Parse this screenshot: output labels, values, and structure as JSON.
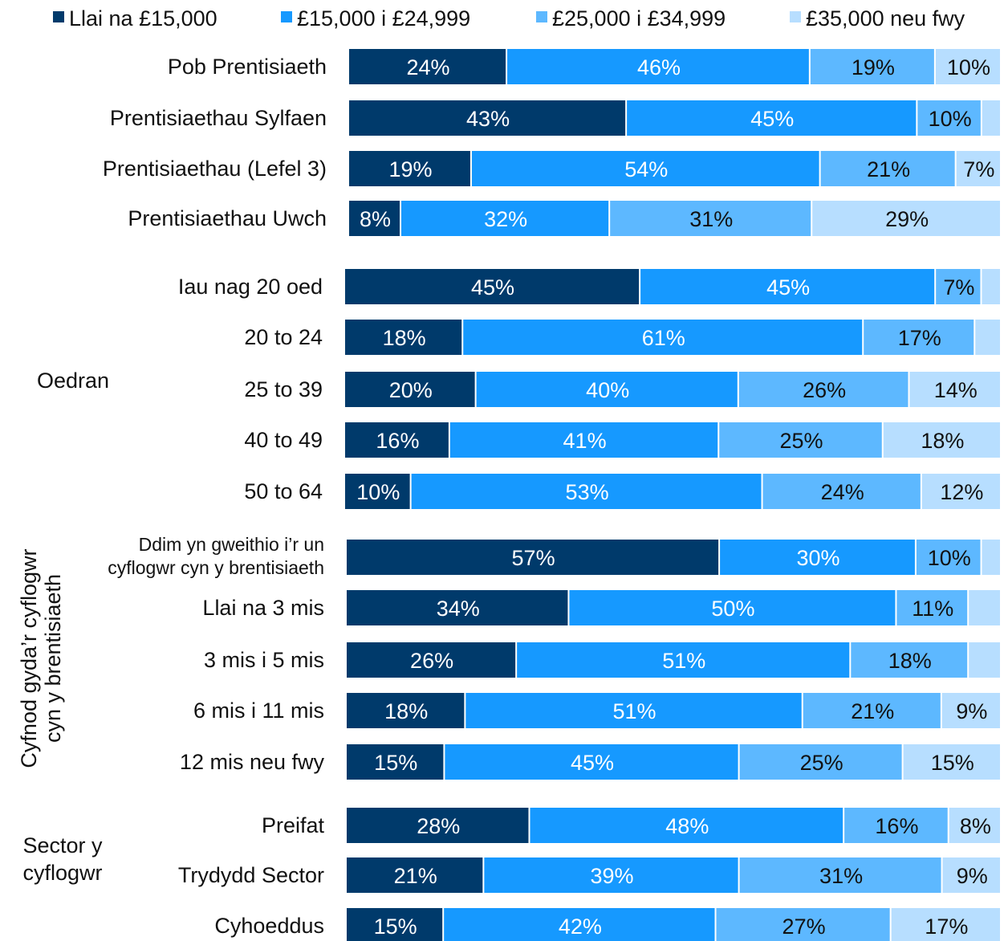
{
  "chart_data": {
    "type": "bar",
    "orientation": "horizontal",
    "stacked": true,
    "series": [
      {
        "name": "Llai na £15,000",
        "color": "#003A6B"
      },
      {
        "name": "£15,000 i £24,999",
        "color": "#1699FF"
      },
      {
        "name": "£25,000 i £34,999",
        "color": "#5DB8FF"
      },
      {
        "name": "£35,000 neu fwy",
        "color": "#B7DEFF"
      }
    ],
    "legend_position": "top",
    "groups": [
      {
        "label": "",
        "rows": [
          {
            "category": "Pob Prentisiaeth",
            "values": [
              24,
              46,
              19,
              10
            ],
            "labels": [
              "24%",
              "46%",
              "19%",
              "10%"
            ]
          },
          {
            "category": "Prentisiaethau Sylfaen",
            "values": [
              43,
              45,
              10,
              3
            ],
            "labels": [
              "43%",
              "45%",
              "10%",
              ""
            ]
          },
          {
            "category": "Prentisiaethau (Lefel 3)",
            "values": [
              19,
              54,
              21,
              7
            ],
            "labels": [
              "19%",
              "54%",
              "21%",
              "7%"
            ]
          },
          {
            "category": "Prentisiaethau Uwch",
            "values": [
              8,
              32,
              31,
              29
            ],
            "labels": [
              "8%",
              "32%",
              "31%",
              "29%"
            ]
          }
        ]
      },
      {
        "label": "Oedran",
        "rows": [
          {
            "category": "Iau nag 20 oed",
            "values": [
              45,
              45,
              7,
              3
            ],
            "labels": [
              "45%",
              "45%",
              "7%",
              ""
            ]
          },
          {
            "category": "20 to 24",
            "values": [
              18,
              61,
              17,
              4
            ],
            "labels": [
              "18%",
              "61%",
              "17%",
              ""
            ]
          },
          {
            "category": "25 to 39",
            "values": [
              20,
              40,
              26,
              14
            ],
            "labels": [
              "20%",
              "40%",
              "26%",
              "14%"
            ]
          },
          {
            "category": "40 to 49",
            "values": [
              16,
              41,
              25,
              18
            ],
            "labels": [
              "16%",
              "41%",
              "25%",
              "18%"
            ]
          },
          {
            "category": "50 to 64",
            "values": [
              10,
              53,
              24,
              12
            ],
            "labels": [
              "10%",
              "53%",
              "24%",
              "12%"
            ]
          }
        ]
      },
      {
        "label": "Cyfnod gyda’r cyflogwr cyn y brentisiaeth",
        "rows": [
          {
            "category": "Ddim yn gweithio i’r un cyflogwr cyn y brentisiaeth",
            "values": [
              57,
              30,
              10,
              3
            ],
            "labels": [
              "57%",
              "30%",
              "10%",
              ""
            ]
          },
          {
            "category": "Llai na 3 mis",
            "values": [
              34,
              50,
              11,
              5
            ],
            "labels": [
              "34%",
              "50%",
              "11%",
              ""
            ]
          },
          {
            "category": "3 mis i 5 mis",
            "values": [
              26,
              51,
              18,
              5
            ],
            "labels": [
              "26%",
              "51%",
              "18%",
              ""
            ]
          },
          {
            "category": "6 mis i 11 mis",
            "values": [
              18,
              51,
              21,
              9
            ],
            "labels": [
              "18%",
              "51%",
              "21%",
              "9%"
            ]
          },
          {
            "category": "12 mis neu fwy",
            "values": [
              15,
              45,
              25,
              15
            ],
            "labels": [
              "15%",
              "45%",
              "25%",
              "15%"
            ]
          }
        ]
      },
      {
        "label": "Sector y cyflogwr",
        "rows": [
          {
            "category": "Preifat",
            "values": [
              28,
              48,
              16,
              8
            ],
            "labels": [
              "28%",
              "48%",
              "16%",
              "8%"
            ]
          },
          {
            "category": "Trydydd Sector",
            "values": [
              21,
              39,
              31,
              9
            ],
            "labels": [
              "21%",
              "39%",
              "31%",
              "9%"
            ]
          },
          {
            "category": "Cyhoeddus",
            "values": [
              15,
              42,
              27,
              17
            ],
            "labels": [
              "15%",
              "42%",
              "27%",
              "17%"
            ]
          }
        ]
      }
    ],
    "xlim": [
      0,
      100
    ],
    "grid": false
  }
}
